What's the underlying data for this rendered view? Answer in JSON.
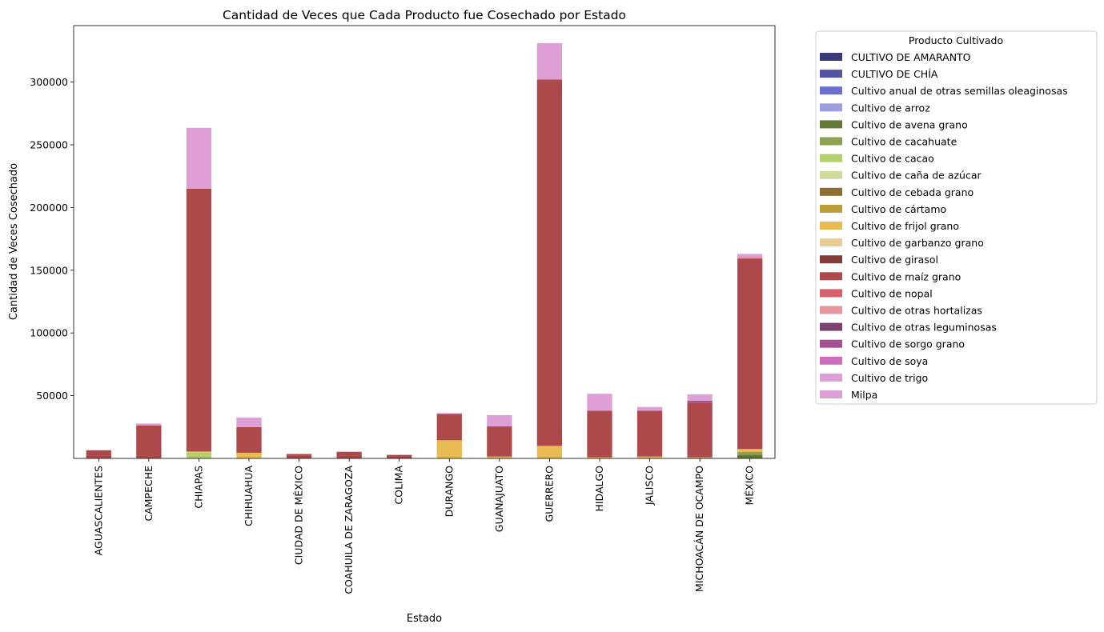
{
  "chart_data": {
    "type": "bar",
    "stacked": true,
    "title": "Cantidad de Veces que Cada Producto fue Cosechado por Estado",
    "xlabel": "Estado",
    "ylabel": "Cantidad de Veces Cosechado",
    "ylim": [
      0,
      345000
    ],
    "yticks": [
      50000,
      100000,
      150000,
      200000,
      250000,
      300000
    ],
    "grid": false,
    "legend_title": "Producto Cultivado",
    "legend_position": "outside-right",
    "categories": [
      "AGUASCALIENTES",
      "CAMPECHE",
      "CHIAPAS",
      "CHIHUAHUA",
      "CIUDAD DE MÉXICO",
      "COAHUILA DE ZARAGOZA",
      "COLIMA",
      "DURANGO",
      "GUANAJUATO",
      "GUERRERO",
      "HIDALGO",
      "JALISCO",
      "MICHOACÁN DE OCAMPO",
      "MÉXICO"
    ],
    "series": [
      {
        "name": "CULTIVO DE AMARANTO",
        "color": "#393b79",
        "values": [
          0,
          0,
          0,
          0,
          0,
          0,
          0,
          0,
          0,
          0,
          0,
          0,
          0,
          0
        ]
      },
      {
        "name": "CULTIVO DE CHÍA",
        "color": "#5254a3",
        "values": [
          0,
          0,
          0,
          0,
          0,
          0,
          0,
          0,
          0,
          0,
          0,
          0,
          0,
          0
        ]
      },
      {
        "name": "Cultivo anual de otras semillas oleaginosas",
        "color": "#6b6ecf",
        "values": [
          0,
          0,
          0,
          0,
          0,
          0,
          0,
          0,
          0,
          0,
          0,
          0,
          0,
          0
        ]
      },
      {
        "name": "Cultivo de arroz",
        "color": "#9c9ede",
        "values": [
          0,
          0,
          0,
          0,
          0,
          0,
          0,
          0,
          0,
          0,
          0,
          0,
          0,
          0
        ]
      },
      {
        "name": "Cultivo de avena grano",
        "color": "#637939",
        "values": [
          0,
          0,
          0,
          0,
          0,
          0,
          0,
          0,
          0,
          0,
          0,
          0,
          500,
          3000
        ]
      },
      {
        "name": "Cultivo de cacahuate",
        "color": "#8ca252",
        "values": [
          0,
          0,
          0,
          0,
          0,
          0,
          0,
          0,
          0,
          0,
          0,
          0,
          0,
          1500
        ]
      },
      {
        "name": "Cultivo de cacao",
        "color": "#b5cf6b",
        "values": [
          0,
          300,
          5000,
          0,
          0,
          0,
          0,
          0,
          0,
          0,
          0,
          0,
          0,
          0
        ]
      },
      {
        "name": "Cultivo de caña de azúcar",
        "color": "#cedb9c",
        "values": [
          0,
          0,
          0,
          0,
          0,
          0,
          0,
          0,
          0,
          0,
          0,
          0,
          0,
          0
        ]
      },
      {
        "name": "Cultivo de cebada grano",
        "color": "#8c6d31",
        "values": [
          0,
          0,
          0,
          0,
          0,
          0,
          0,
          0,
          0,
          0,
          0,
          0,
          0,
          500
        ]
      },
      {
        "name": "Cultivo de cártamo",
        "color": "#bd9e39",
        "values": [
          0,
          0,
          0,
          0,
          0,
          0,
          0,
          0,
          0,
          0,
          0,
          0,
          0,
          0
        ]
      },
      {
        "name": "Cultivo de frijol grano",
        "color": "#e7ba52",
        "values": [
          200,
          0,
          500,
          4500,
          0,
          0,
          0,
          14500,
          1500,
          10000,
          1000,
          1500,
          500,
          2500
        ]
      },
      {
        "name": "Cultivo de garbanzo grano",
        "color": "#e7cb94",
        "values": [
          0,
          0,
          0,
          0,
          0,
          0,
          0,
          0,
          0,
          0,
          0,
          0,
          0,
          0
        ]
      },
      {
        "name": "Cultivo de girasol",
        "color": "#843c39",
        "values": [
          0,
          0,
          0,
          0,
          0,
          0,
          0,
          0,
          0,
          0,
          0,
          0,
          0,
          0
        ]
      },
      {
        "name": "Cultivo de maíz grano",
        "color": "#ad494a",
        "values": [
          6300,
          26000,
          209500,
          20500,
          3500,
          5300,
          2800,
          21000,
          24000,
          292000,
          37000,
          36500,
          43500,
          151500
        ]
      },
      {
        "name": "Cultivo de nopal",
        "color": "#d6616b",
        "values": [
          0,
          0,
          0,
          0,
          0,
          0,
          0,
          0,
          0,
          0,
          0,
          0,
          0,
          1000
        ]
      },
      {
        "name": "Cultivo de otras hortalizas",
        "color": "#e7969c",
        "values": [
          0,
          0,
          0,
          0,
          0,
          0,
          0,
          0,
          0,
          0,
          0,
          0,
          0,
          0
        ]
      },
      {
        "name": "Cultivo de otras leguminosas",
        "color": "#7b4173",
        "values": [
          0,
          0,
          0,
          0,
          0,
          0,
          0,
          0,
          0,
          0,
          0,
          0,
          0,
          0
        ]
      },
      {
        "name": "Cultivo de sorgo grano",
        "color": "#a55194",
        "values": [
          0,
          0,
          0,
          0,
          0,
          0,
          0,
          0,
          0,
          0,
          0,
          0,
          1500,
          0
        ]
      },
      {
        "name": "Cultivo de soya",
        "color": "#ce6dbd",
        "values": [
          0,
          0,
          0,
          0,
          0,
          0,
          0,
          0,
          0,
          0,
          0,
          0,
          0,
          0
        ]
      },
      {
        "name": "Cultivo de trigo",
        "color": "#de9ed6",
        "values": [
          0,
          0,
          0,
          0,
          0,
          0,
          0,
          0,
          0,
          0,
          0,
          0,
          0,
          0
        ]
      },
      {
        "name": "Milpa",
        "color": "#de9ed6",
        "values": [
          0,
          1500,
          48500,
          7500,
          0,
          0,
          0,
          600,
          9000,
          29000,
          13500,
          3000,
          5000,
          3000
        ]
      }
    ]
  }
}
